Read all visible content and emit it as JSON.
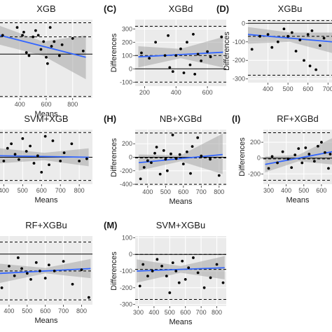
{
  "chart_data": [
    {
      "type": "scatter",
      "tag": "",
      "title": "XGB",
      "xlabel": "Means",
      "ylabel": "",
      "xlim": [
        250,
        950
      ],
      "ylim": [
        -140,
        110
      ],
      "x_ticks": [
        400,
        600,
        800
      ],
      "y_ticks": [],
      "mean_diff": 55,
      "upper_loa": 100,
      "lower_loa": -135,
      "trend": {
        "x": [
          250,
          900
        ],
        "y": [
          60,
          -10
        ]
      },
      "band": {
        "x": [
          250,
          575,
          900
        ],
        "upper": [
          90,
          40,
          60
        ],
        "lower": [
          30,
          -5,
          -80
        ]
      },
      "points": [
        {
          "x": 270,
          "y": 60
        },
        {
          "x": 380,
          "y": 85
        },
        {
          "x": 420,
          "y": 60
        },
        {
          "x": 430,
          "y": 70
        },
        {
          "x": 450,
          "y": 5
        },
        {
          "x": 470,
          "y": -5
        },
        {
          "x": 500,
          "y": 55
        },
        {
          "x": 520,
          "y": 75
        },
        {
          "x": 540,
          "y": 60
        },
        {
          "x": 560,
          "y": 15
        },
        {
          "x": 580,
          "y": 40
        },
        {
          "x": 600,
          "y": -10
        },
        {
          "x": 610,
          "y": -30
        },
        {
          "x": 630,
          "y": 85
        },
        {
          "x": 640,
          "y": 25
        },
        {
          "x": 660,
          "y": 40
        },
        {
          "x": 700,
          "y": -5
        },
        {
          "x": 720,
          "y": 30
        },
        {
          "x": 800,
          "y": 50
        },
        {
          "x": 880,
          "y": 10
        }
      ]
    },
    {
      "type": "scatter",
      "tag": "(C)",
      "title": "XGBd",
      "xlabel": "",
      "ylabel": "Differences",
      "xlim": [
        140,
        720
      ],
      "ylim": [
        -130,
        370
      ],
      "x_ticks": [
        200,
        400,
        600
      ],
      "y_ticks": [
        -100,
        0,
        100,
        200,
        300
      ],
      "mean_diff": 100,
      "upper_loa": 320,
      "lower_loa": -100,
      "trend": {
        "x": [
          160,
          700
        ],
        "y": [
          90,
          125
        ]
      },
      "band": {
        "x": [
          160,
          430,
          700
        ],
        "upper": [
          170,
          150,
          240
        ],
        "lower": [
          10,
          80,
          10
        ]
      },
      "points": [
        {
          "x": 180,
          "y": 120
        },
        {
          "x": 230,
          "y": 80
        },
        {
          "x": 270,
          "y": 200
        },
        {
          "x": 330,
          "y": 100
        },
        {
          "x": 350,
          "y": 250
        },
        {
          "x": 360,
          "y": 10
        },
        {
          "x": 380,
          "y": -20
        },
        {
          "x": 400,
          "y": 100
        },
        {
          "x": 430,
          "y": 150
        },
        {
          "x": 450,
          "y": -30
        },
        {
          "x": 470,
          "y": 200
        },
        {
          "x": 490,
          "y": 30
        },
        {
          "x": 510,
          "y": 260
        },
        {
          "x": 520,
          "y": -40
        },
        {
          "x": 540,
          "y": 110
        },
        {
          "x": 560,
          "y": 60
        },
        {
          "x": 600,
          "y": 130
        },
        {
          "x": 620,
          "y": 90
        },
        {
          "x": 690,
          "y": 240
        }
      ]
    },
    {
      "type": "scatter",
      "tag": "(D)",
      "title": "XGBu",
      "xlabel": "",
      "ylabel": "Differences",
      "xlim": [
        300,
        720
      ],
      "ylim": [
        -320,
        20
      ],
      "x_ticks": [
        400,
        500,
        600,
        700
      ],
      "y_ticks": [
        -300,
        -200,
        -100,
        0
      ],
      "mean_diff": -70,
      "upper_loa": 15,
      "lower_loa": -280,
      "trend": {
        "x": [
          300,
          720
        ],
        "y": [
          -60,
          -100
        ]
      },
      "band": {
        "x": [
          300,
          510,
          720
        ],
        "upper": [
          -20,
          -50,
          -50
        ],
        "lower": [
          -110,
          -100,
          -160
        ]
      },
      "points": [
        {
          "x": 320,
          "y": -140
        },
        {
          "x": 360,
          "y": -70
        },
        {
          "x": 400,
          "y": -60
        },
        {
          "x": 420,
          "y": -130
        },
        {
          "x": 450,
          "y": -100
        },
        {
          "x": 480,
          "y": -30
        },
        {
          "x": 500,
          "y": -70
        },
        {
          "x": 520,
          "y": -50
        },
        {
          "x": 540,
          "y": -150
        },
        {
          "x": 560,
          "y": -90
        },
        {
          "x": 580,
          "y": -200
        },
        {
          "x": 600,
          "y": -60
        },
        {
          "x": 610,
          "y": -230
        },
        {
          "x": 620,
          "y": -40
        },
        {
          "x": 640,
          "y": -250
        },
        {
          "x": 660,
          "y": -120
        },
        {
          "x": 680,
          "y": -80
        }
      ]
    },
    {
      "type": "scatter",
      "tag": "",
      "title": "SVM+XGB",
      "xlabel": "Means",
      "ylabel": "",
      "xlim": [
        380,
        870
      ],
      "ylim": [
        -360,
        370
      ],
      "x_ticks": [
        400,
        500,
        600,
        700,
        800
      ],
      "y_ticks": [],
      "mean_diff": 0,
      "upper_loa": 330,
      "lower_loa": -310,
      "trend": {
        "x": [
          380,
          850
        ],
        "y": [
          20,
          0
        ]
      },
      "band": {
        "x": [
          380,
          615,
          850
        ],
        "upper": [
          120,
          60,
          120
        ],
        "lower": [
          -80,
          -40,
          -120
        ]
      },
      "points": [
        {
          "x": 400,
          "y": -50
        },
        {
          "x": 420,
          "y": 120
        },
        {
          "x": 440,
          "y": 180
        },
        {
          "x": 460,
          "y": 40
        },
        {
          "x": 480,
          "y": -30
        },
        {
          "x": 500,
          "y": 250
        },
        {
          "x": 520,
          "y": 80
        },
        {
          "x": 540,
          "y": 150
        },
        {
          "x": 560,
          "y": -80
        },
        {
          "x": 580,
          "y": 20
        },
        {
          "x": 600,
          "y": -200
        },
        {
          "x": 620,
          "y": 280
        },
        {
          "x": 640,
          "y": -100
        },
        {
          "x": 660,
          "y": 220
        },
        {
          "x": 700,
          "y": -50
        },
        {
          "x": 720,
          "y": 60
        },
        {
          "x": 760,
          "y": 180
        },
        {
          "x": 800,
          "y": -50
        },
        {
          "x": 840,
          "y": -20
        }
      ]
    },
    {
      "type": "scatter",
      "tag": "(H)",
      "title": "NB+XGBd",
      "xlabel": "Means",
      "ylabel": "Differences",
      "xlim": [
        330,
        840
      ],
      "ylim": [
        -420,
        410
      ],
      "x_ticks": [
        400,
        500,
        600,
        700,
        800
      ],
      "y_ticks": [
        -400,
        -200,
        0,
        200
      ],
      "mean_diff": -10,
      "upper_loa": 360,
      "lower_loa": -400,
      "trend": {
        "x": [
          350,
          820
        ],
        "y": [
          -80,
          40
        ]
      },
      "band": {
        "x": [
          350,
          585,
          820
        ],
        "upper": [
          40,
          30,
          350
        ],
        "lower": [
          -200,
          -60,
          -250
        ]
      },
      "points": [
        {
          "x": 360,
          "y": -320
        },
        {
          "x": 380,
          "y": -150
        },
        {
          "x": 400,
          "y": -50
        },
        {
          "x": 420,
          "y": -80
        },
        {
          "x": 440,
          "y": 60
        },
        {
          "x": 450,
          "y": 150
        },
        {
          "x": 470,
          "y": -250
        },
        {
          "x": 490,
          "y": 100
        },
        {
          "x": 500,
          "y": -30
        },
        {
          "x": 510,
          "y": -200
        },
        {
          "x": 530,
          "y": 50
        },
        {
          "x": 540,
          "y": 330
        },
        {
          "x": 560,
          "y": -20
        },
        {
          "x": 580,
          "y": 40
        },
        {
          "x": 600,
          "y": -100
        },
        {
          "x": 620,
          "y": 80
        },
        {
          "x": 640,
          "y": -240
        },
        {
          "x": 650,
          "y": 160
        },
        {
          "x": 680,
          "y": 290
        },
        {
          "x": 700,
          "y": 20
        },
        {
          "x": 750,
          "y": -30
        },
        {
          "x": 800,
          "y": -270
        }
      ]
    },
    {
      "type": "scatter",
      "tag": "(I)",
      "title": "RF+XGBd",
      "xlabel": "Means",
      "ylabel": "Differences",
      "xlim": [
        270,
        660
      ],
      "ylim": [
        -330,
        360
      ],
      "x_ticks": [
        300,
        400,
        500,
        600
      ],
      "y_ticks": [
        -200,
        0,
        200
      ],
      "mean_diff": -10,
      "upper_loa": 320,
      "lower_loa": -280,
      "trend": {
        "x": [
          280,
          660
        ],
        "y": [
          -80,
          80
        ]
      },
      "band": {
        "x": [
          280,
          470,
          660
        ],
        "upper": [
          20,
          40,
          250
        ],
        "lower": [
          -180,
          -40,
          -80
        ]
      },
      "points": [
        {
          "x": 300,
          "y": -130
        },
        {
          "x": 320,
          "y": 20
        },
        {
          "x": 350,
          "y": -60
        },
        {
          "x": 380,
          "y": 80
        },
        {
          "x": 410,
          "y": -10
        },
        {
          "x": 430,
          "y": -120
        },
        {
          "x": 450,
          "y": 40
        },
        {
          "x": 470,
          "y": 120
        },
        {
          "x": 490,
          "y": -60
        },
        {
          "x": 510,
          "y": 130
        },
        {
          "x": 530,
          "y": 50
        },
        {
          "x": 560,
          "y": -40
        },
        {
          "x": 580,
          "y": 150
        },
        {
          "x": 600,
          "y": 200
        },
        {
          "x": 620,
          "y": 70
        },
        {
          "x": 640,
          "y": -130
        },
        {
          "x": 650,
          "y": 50
        }
      ]
    },
    {
      "type": "scatter",
      "tag": "",
      "title": "RF+XGBu",
      "xlabel": "Means",
      "ylabel": "",
      "xlim": [
        350,
        860
      ],
      "ylim": [
        -420,
        150
      ],
      "x_ticks": [
        400,
        500,
        600,
        700,
        800
      ],
      "y_ticks": [],
      "mean_diff": -140,
      "upper_loa": 100,
      "lower_loa": -380,
      "trend": {
        "x": [
          350,
          850
        ],
        "y": [
          -160,
          -120
        ]
      },
      "band": {
        "x": [
          350,
          600,
          850
        ],
        "upper": [
          -80,
          -115,
          -40
        ],
        "lower": [
          -240,
          -160,
          -200
        ]
      },
      "points": [
        {
          "x": 360,
          "y": -280
        },
        {
          "x": 400,
          "y": -100
        },
        {
          "x": 430,
          "y": -180
        },
        {
          "x": 450,
          "y": -30
        },
        {
          "x": 470,
          "y": -120
        },
        {
          "x": 500,
          "y": -160
        },
        {
          "x": 520,
          "y": -210
        },
        {
          "x": 550,
          "y": -70
        },
        {
          "x": 570,
          "y": -140
        },
        {
          "x": 600,
          "y": -200
        },
        {
          "x": 620,
          "y": -90
        },
        {
          "x": 650,
          "y": -140
        },
        {
          "x": 700,
          "y": -60
        },
        {
          "x": 750,
          "y": -250
        },
        {
          "x": 800,
          "y": -130
        },
        {
          "x": 840,
          "y": -360
        }
      ]
    },
    {
      "type": "scatter",
      "tag": "(M)",
      "title": "SVM+XGBu",
      "xlabel": "Means",
      "ylabel": "Differences",
      "xlim": [
        280,
        860
      ],
      "ylim": [
        -310,
        110
      ],
      "x_ticks": [
        300,
        400,
        500,
        600,
        700,
        800
      ],
      "y_ticks": [
        -300,
        -200,
        -100,
        0,
        100
      ],
      "mean_diff": -90,
      "upper_loa": 0,
      "lower_loa": -270,
      "trend": {
        "x": [
          290,
          850
        ],
        "y": [
          -100,
          -80
        ]
      },
      "band": {
        "x": [
          290,
          570,
          850
        ],
        "upper": [
          -30,
          -70,
          -10
        ],
        "lower": [
          -170,
          -110,
          -150
        ]
      },
      "points": [
        {
          "x": 310,
          "y": -190
        },
        {
          "x": 330,
          "y": -60
        },
        {
          "x": 360,
          "y": -130
        },
        {
          "x": 390,
          "y": -100
        },
        {
          "x": 420,
          "y": -30
        },
        {
          "x": 450,
          "y": -70
        },
        {
          "x": 480,
          "y": -130
        },
        {
          "x": 500,
          "y": -230
        },
        {
          "x": 520,
          "y": -50
        },
        {
          "x": 540,
          "y": -100
        },
        {
          "x": 560,
          "y": -170
        },
        {
          "x": 580,
          "y": -40
        },
        {
          "x": 600,
          "y": -150
        },
        {
          "x": 620,
          "y": -80
        },
        {
          "x": 650,
          "y": -20
        },
        {
          "x": 680,
          "y": -110
        },
        {
          "x": 720,
          "y": -200
        },
        {
          "x": 760,
          "y": -140
        },
        {
          "x": 800,
          "y": -60
        },
        {
          "x": 840,
          "y": -170
        }
      ]
    }
  ]
}
